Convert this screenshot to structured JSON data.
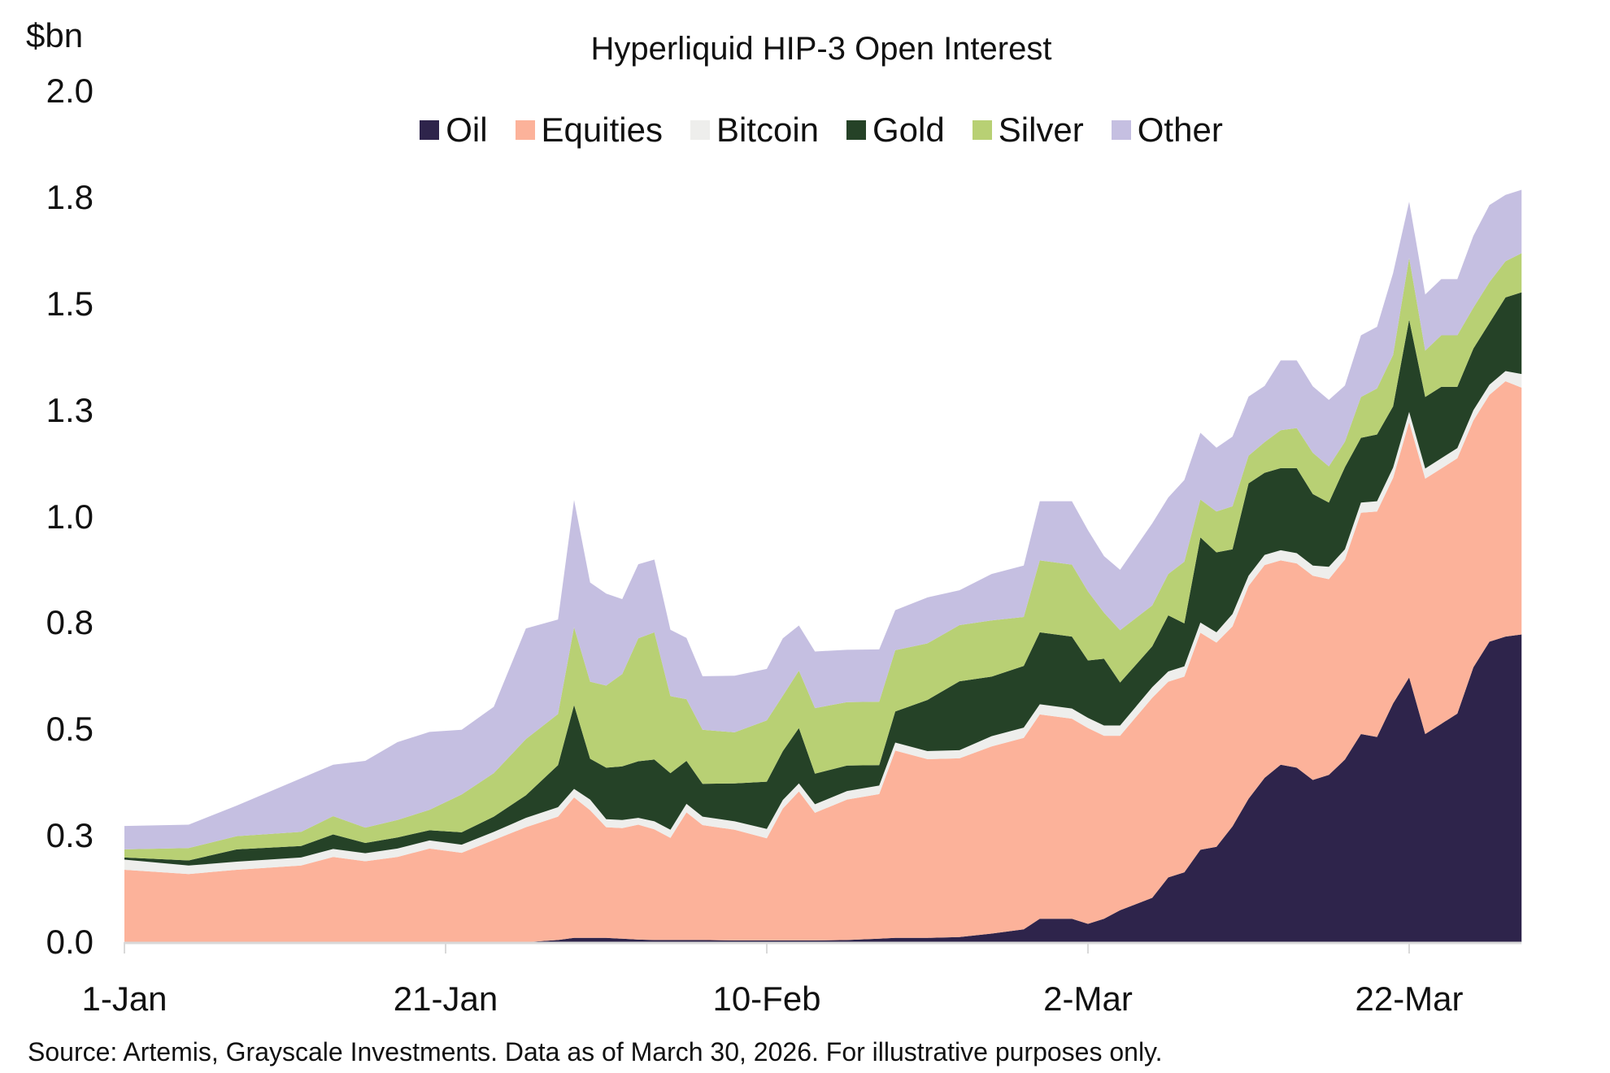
{
  "chart": {
    "unit_label": "$bn",
    "title": "Hyperliquid HIP-3 Open Interest",
    "source": "Source: Artemis, Grayscale Investments. Data as of March 30, 2026. For illustrative purposes only."
  },
  "legend": [
    {
      "label": "Oil",
      "color": "#2e244b"
    },
    {
      "label": "Equities",
      "color": "#fcb29a"
    },
    {
      "label": "Bitcoin",
      "color": "#eeeeec"
    },
    {
      "label": "Gold",
      "color": "#254227"
    },
    {
      "label": "Silver",
      "color": "#b8d074"
    },
    {
      "label": "Other",
      "color": "#c5bfe1"
    }
  ],
  "y_ticks": [
    {
      "label": "0.0",
      "value": 0.0
    },
    {
      "label": "0.3",
      "value": 0.25
    },
    {
      "label": "0.5",
      "value": 0.5
    },
    {
      "label": "0.8",
      "value": 0.75
    },
    {
      "label": "1.0",
      "value": 1.0
    },
    {
      "label": "1.3",
      "value": 1.25
    },
    {
      "label": "1.5",
      "value": 1.5
    },
    {
      "label": "1.8",
      "value": 1.75
    },
    {
      "label": "2.0",
      "value": 2.0
    }
  ],
  "x_ticks": [
    {
      "label": "1-Jan",
      "day": 0
    },
    {
      "label": "21-Jan",
      "day": 20
    },
    {
      "label": "10-Feb",
      "day": 40
    },
    {
      "label": "2-Mar",
      "day": 60
    },
    {
      "label": "22-Mar",
      "day": 80
    }
  ],
  "chart_data": {
    "type": "area",
    "stacked": true,
    "title": "Hyperliquid HIP-3 Open Interest",
    "xlabel": "",
    "ylabel": "$bn",
    "ylim": [
      0,
      2.0
    ],
    "x_tick_labels": [
      "1-Jan",
      "21-Jan",
      "10-Feb",
      "2-Mar",
      "22-Mar"
    ],
    "y_tick_labels": [
      "0.0",
      "0.3",
      "0.5",
      "0.8",
      "1.0",
      "1.3",
      "1.5",
      "1.8",
      "2.0"
    ],
    "legend_position": "top",
    "grid": false,
    "x_day_offsets": [
      0,
      4,
      7,
      11,
      13,
      15,
      17,
      19,
      21,
      23,
      25,
      27,
      28,
      29,
      30,
      31,
      32,
      33,
      34,
      35,
      36,
      38,
      40,
      41,
      42,
      43,
      45,
      47,
      48,
      50,
      52,
      54,
      56,
      57,
      59,
      60,
      61,
      62,
      64,
      65,
      66,
      67,
      68,
      69,
      70,
      71,
      72,
      73,
      74,
      75,
      76,
      77,
      78,
      79,
      80,
      81,
      82,
      83,
      84,
      85,
      86,
      87
    ],
    "x": [
      "1-Jan",
      "5-Jan",
      "8-Jan",
      "12-Jan",
      "14-Jan",
      "16-Jan",
      "18-Jan",
      "20-Jan",
      "22-Jan",
      "24-Jan",
      "26-Jan",
      "28-Jan",
      "29-Jan",
      "30-Jan",
      "31-Jan",
      "1-Feb",
      "2-Feb",
      "3-Feb",
      "4-Feb",
      "5-Feb",
      "6-Feb",
      "8-Feb",
      "10-Feb",
      "11-Feb",
      "12-Feb",
      "13-Feb",
      "15-Feb",
      "17-Feb",
      "18-Feb",
      "20-Feb",
      "22-Feb",
      "24-Feb",
      "26-Feb",
      "27-Feb",
      "1-Mar",
      "2-Mar",
      "3-Mar",
      "4-Mar",
      "6-Mar",
      "7-Mar",
      "8-Mar",
      "9-Mar",
      "10-Mar",
      "11-Mar",
      "12-Mar",
      "13-Mar",
      "14-Mar",
      "15-Mar",
      "16-Mar",
      "17-Mar",
      "18-Mar",
      "19-Mar",
      "20-Mar",
      "21-Mar",
      "22-Mar",
      "23-Mar",
      "24-Mar",
      "25-Mar",
      "26-Mar",
      "27-Mar",
      "28-Mar",
      "29-Mar"
    ],
    "series": [
      {
        "name": "Oil",
        "color": "#2e244b",
        "values": [
          0,
          0,
          0,
          0,
          0,
          0,
          0,
          0,
          0,
          0,
          0,
          0.005,
          0.01,
          0.01,
          0.01,
          0.008,
          0.006,
          0.005,
          0.005,
          0.005,
          0.005,
          0.004,
          0.004,
          0.004,
          0.004,
          0.004,
          0.005,
          0.008,
          0.01,
          0.01,
          0.012,
          0.02,
          0.03,
          0.055,
          0.055,
          0.043,
          0.055,
          0.075,
          0.104,
          0.152,
          0.164,
          0.217,
          0.224,
          0.272,
          0.337,
          0.386,
          0.417,
          0.41,
          0.381,
          0.393,
          0.429,
          0.489,
          0.482,
          0.561,
          0.622,
          0.489,
          0.513,
          0.537,
          0.646,
          0.706,
          0.718,
          0.723
        ]
      },
      {
        "name": "Equities",
        "color": "#fcb29a",
        "values": [
          0.17,
          0.16,
          0.17,
          0.18,
          0.2,
          0.19,
          0.2,
          0.22,
          0.21,
          0.24,
          0.27,
          0.29,
          0.33,
          0.3,
          0.26,
          0.26,
          0.27,
          0.26,
          0.24,
          0.3,
          0.27,
          0.26,
          0.24,
          0.31,
          0.35,
          0.3,
          0.33,
          0.34,
          0.44,
          0.42,
          0.42,
          0.44,
          0.45,
          0.48,
          0.47,
          0.46,
          0.43,
          0.41,
          0.47,
          0.46,
          0.46,
          0.51,
          0.48,
          0.47,
          0.5,
          0.5,
          0.48,
          0.48,
          0.48,
          0.46,
          0.47,
          0.52,
          0.53,
          0.53,
          0.6,
          0.6,
          0.6,
          0.6,
          0.58,
          0.58,
          0.6,
          0.58
        ]
      },
      {
        "name": "Bitcoin",
        "color": "#eeeeec",
        "values": [
          0.024,
          0.02,
          0.019,
          0.019,
          0.019,
          0.019,
          0.02,
          0.019,
          0.019,
          0.019,
          0.022,
          0.022,
          0.02,
          0.025,
          0.019,
          0.019,
          0.016,
          0.019,
          0.019,
          0.02,
          0.02,
          0.02,
          0.022,
          0.02,
          0.019,
          0.02,
          0.02,
          0.02,
          0.019,
          0.019,
          0.019,
          0.024,
          0.024,
          0.024,
          0.024,
          0.024,
          0.024,
          0.024,
          0.025,
          0.024,
          0.024,
          0.024,
          0.024,
          0.029,
          0.024,
          0.024,
          0.024,
          0.024,
          0.024,
          0.029,
          0.024,
          0.024,
          0.024,
          0.024,
          0.024,
          0.024,
          0.024,
          0.024,
          0.024,
          0.024,
          0.024,
          0.032
        ]
      },
      {
        "name": "Gold",
        "color": "#254227",
        "values": [
          0.005,
          0.012,
          0.029,
          0.027,
          0.034,
          0.024,
          0.026,
          0.024,
          0.029,
          0.036,
          0.053,
          0.099,
          0.197,
          0.096,
          0.121,
          0.126,
          0.133,
          0.145,
          0.133,
          0.101,
          0.077,
          0.089,
          0.111,
          0.115,
          0.13,
          0.072,
          0.06,
          0.048,
          0.073,
          0.12,
          0.162,
          0.14,
          0.145,
          0.169,
          0.169,
          0.135,
          0.157,
          0.101,
          0.096,
          0.132,
          0.101,
          0.2,
          0.188,
          0.152,
          0.217,
          0.193,
          0.193,
          0.2,
          0.168,
          0.151,
          0.193,
          0.152,
          0.157,
          0.144,
          0.217,
          0.168,
          0.168,
          0.144,
          0.145,
          0.145,
          0.173,
          0.192
        ]
      },
      {
        "name": "Silver",
        "color": "#b8d074",
        "values": [
          0.019,
          0.029,
          0.031,
          0.033,
          0.043,
          0.036,
          0.041,
          0.048,
          0.089,
          0.102,
          0.132,
          0.12,
          0.183,
          0.181,
          0.193,
          0.217,
          0.289,
          0.299,
          0.181,
          0.145,
          0.127,
          0.12,
          0.144,
          0.13,
          0.135,
          0.154,
          0.149,
          0.149,
          0.144,
          0.133,
          0.132,
          0.132,
          0.115,
          0.169,
          0.169,
          0.162,
          0.108,
          0.123,
          0.096,
          0.097,
          0.145,
          0.089,
          0.096,
          0.101,
          0.065,
          0.072,
          0.089,
          0.094,
          0.097,
          0.085,
          0.06,
          0.096,
          0.108,
          0.121,
          0.145,
          0.109,
          0.121,
          0.121,
          0.096,
          0.096,
          0.085,
          0.092
        ]
      },
      {
        "name": "Other",
        "color": "#c5bfe1",
        "values": [
          0.055,
          0.055,
          0.072,
          0.126,
          0.121,
          0.157,
          0.183,
          0.183,
          0.152,
          0.156,
          0.26,
          0.222,
          0.299,
          0.233,
          0.216,
          0.176,
          0.174,
          0.171,
          0.156,
          0.144,
          0.126,
          0.133,
          0.121,
          0.135,
          0.106,
          0.133,
          0.123,
          0.123,
          0.094,
          0.108,
          0.082,
          0.109,
          0.121,
          0.139,
          0.149,
          0.144,
          0.133,
          0.142,
          0.193,
          0.18,
          0.192,
          0.157,
          0.15,
          0.164,
          0.139,
          0.132,
          0.164,
          0.159,
          0.156,
          0.156,
          0.132,
          0.145,
          0.145,
          0.192,
          0.132,
          0.132,
          0.132,
          0.132,
          0.169,
          0.181,
          0.156,
          0.149
        ]
      }
    ]
  }
}
